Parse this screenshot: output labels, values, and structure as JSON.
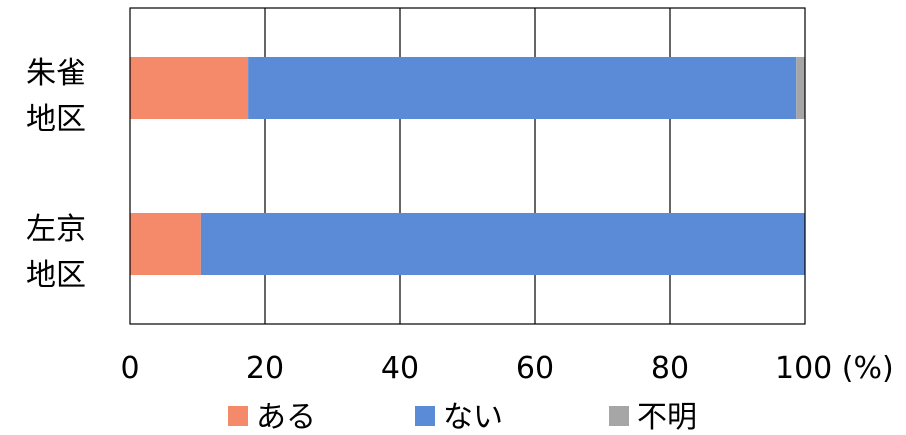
{
  "chart_data": {
    "type": "bar",
    "orientation": "horizontal",
    "stacked": true,
    "categories": [
      [
        "朱雀",
        "地区"
      ],
      [
        "左京",
        "地区"
      ]
    ],
    "series": [
      {
        "name": "ある",
        "color": "#f58a6b",
        "values": [
          17.5,
          10.5
        ]
      },
      {
        "name": "ない",
        "color": "#5b8ad7",
        "values": [
          81.2,
          89.5
        ]
      },
      {
        "name": "不明",
        "color": "#a6a6a6",
        "values": [
          1.3,
          0
        ]
      }
    ],
    "xlim": [
      0,
      100
    ],
    "xticks": [
      "0",
      "20",
      "40",
      "60",
      "80",
      "100 (%)"
    ],
    "grid": "vertical",
    "legend_position": "bottom"
  }
}
